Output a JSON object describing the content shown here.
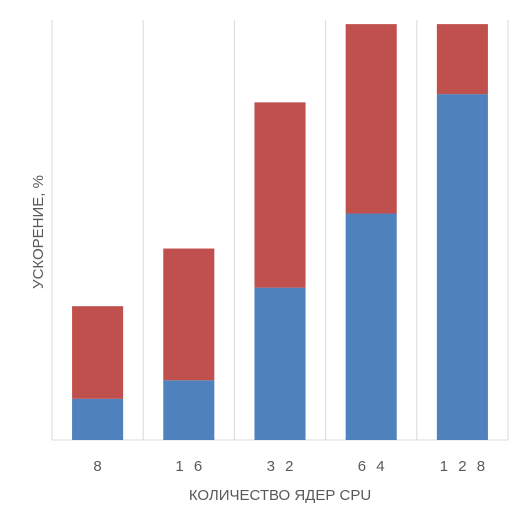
{
  "chart_data": {
    "type": "bar",
    "stacked": true,
    "categories": [
      "8",
      "16",
      "32",
      "64",
      "128"
    ],
    "category_display": [
      "8",
      "1 6",
      "3 2",
      "6 4",
      "1 2 8"
    ],
    "series": [
      {
        "values": [
          10,
          14.5,
          37,
          55,
          84
        ],
        "color": "#4f81bd"
      },
      {
        "values": [
          22.5,
          32,
          45,
          46,
          17
        ],
        "color": "#c0504d"
      }
    ],
    "xlabel": "КОЛИЧЕСТВО ЯДЕР CPU",
    "ylabel": "УСКОРЕНИЕ, %",
    "ylim": [
      0,
      102
    ],
    "grid": "vertical",
    "legend": "none"
  }
}
